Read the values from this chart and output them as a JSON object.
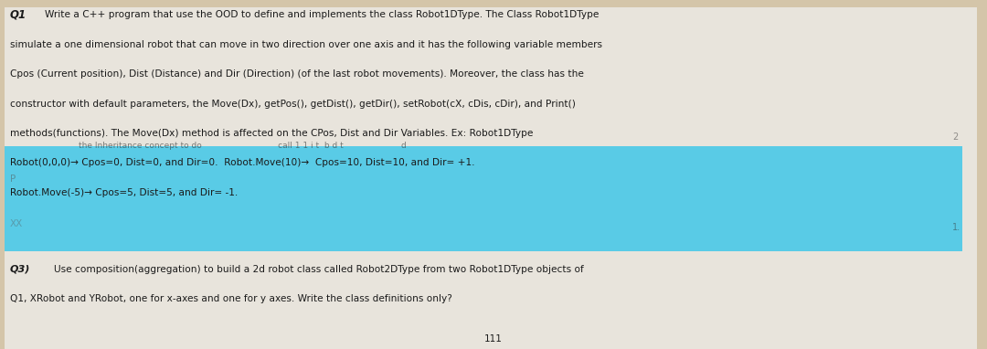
{
  "bg_color": "#d4c5a9",
  "paper_color": "#e8e4dc",
  "cyan_color": "#45c8e8",
  "text_color": "#1a1a1a",
  "figsize": [
    10.8,
    3.82
  ],
  "dpi": 100,
  "line1": "Q1  Write a C++ program that use the OOD to define and implements the class Robot1DType. The Class Robot1DType",
  "line2": "simulate a one dimensional robot that can move in two direction over one axis and it has the following variable members",
  "line3": "Cpos (Current position), Dist (Distance) and Dir (Direction) (of the last robot movements). Moreover, the class has the",
  "line4": "constructor with default parameters, the Move(Dx), getPos(), getDist(), getDir(), setRobot(cX, cDis, cDir), and Print()",
  "line5": "methods(functions). The Move(Dx) method is affected on the CPos, Dist and Dir Variables. Ex: Robot1DType",
  "line6": "Robot(0,0,0)→ Cpos=0, Dist=0, and Dir=0.  Robot.Move(10)→  Cpos=10, Dist=10, and Dir= +1.",
  "line7": "Robot.Move(-5)→ Cpos=5, Dist=5, and Dir= -1.",
  "cyan_line_partial": "the Inheritance concept to do                             call 1 1 i t  b d t                      d",
  "q3_line1": "Q3) Use composition(aggregation) to build a 2d robot class called Robot2DType from two Robot1DType objects of",
  "q3_line2": "Q1, XRobot and YRobot, one for x-axes and one for y axes. Write the class definitions only?",
  "bottom_partial": "111"
}
